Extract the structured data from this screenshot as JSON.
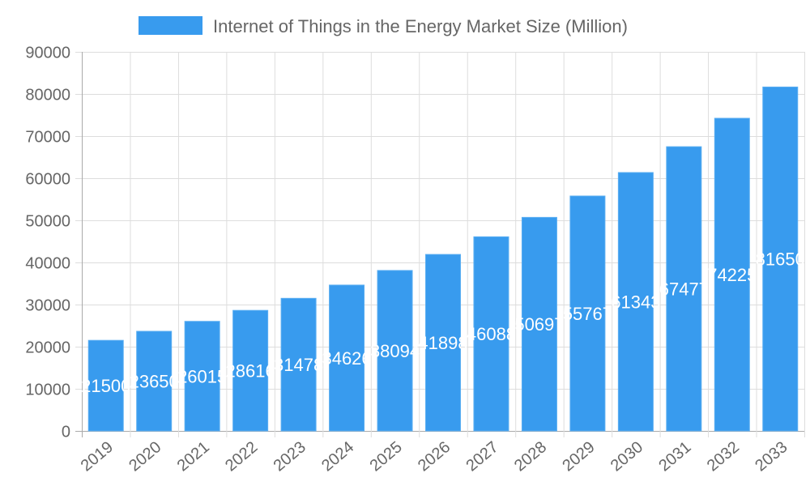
{
  "chart_data": {
    "type": "bar",
    "title": "",
    "xlabel": "",
    "ylabel": "",
    "categories": [
      "2019",
      "2020",
      "2021",
      "2022",
      "2023",
      "2024",
      "2025",
      "2026",
      "2027",
      "2028",
      "2029",
      "2030",
      "2031",
      "2032",
      "2033"
    ],
    "series": [
      {
        "name": "Internet of Things in the Energy Market Size (Million)",
        "values": [
          21500,
          23650,
          26015,
          28616,
          31478,
          34626,
          38094,
          41898,
          46088,
          50697,
          55767,
          61343,
          67477,
          74225,
          81650
        ],
        "color": "#389BEE"
      }
    ],
    "ylim": [
      0,
      90000
    ],
    "yticks": [
      0,
      10000,
      20000,
      30000,
      40000,
      50000,
      60000,
      70000,
      80000,
      90000
    ],
    "grid": true,
    "legend_position": "top",
    "data_labels": true
  }
}
